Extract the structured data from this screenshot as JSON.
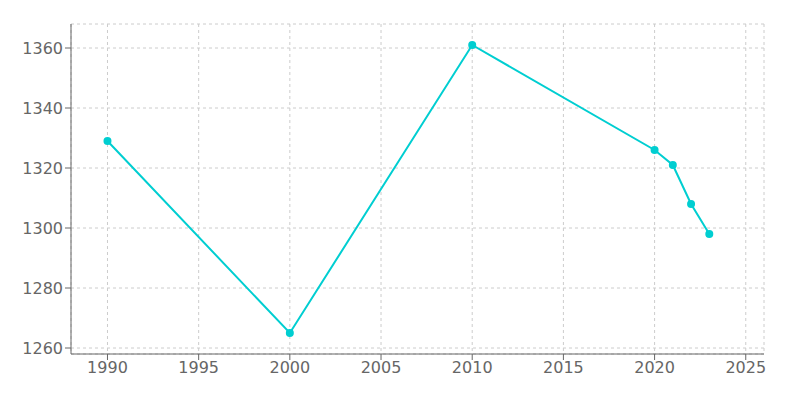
{
  "chart_data": {
    "type": "line",
    "x": [
      1990,
      2000,
      2010,
      2020,
      2021,
      2022,
      2023
    ],
    "values": [
      1329,
      1265,
      1361,
      1326,
      1321,
      1308,
      1298
    ],
    "color": "#00CED1",
    "marker": "o",
    "xlim": [
      1988,
      2026
    ],
    "ylim": [
      1258,
      1368
    ],
    "xticks": [
      1990,
      1995,
      2000,
      2005,
      2010,
      2015,
      2020,
      2025
    ],
    "yticks": [
      1260,
      1280,
      1300,
      1320,
      1340,
      1360
    ],
    "grid": true
  }
}
